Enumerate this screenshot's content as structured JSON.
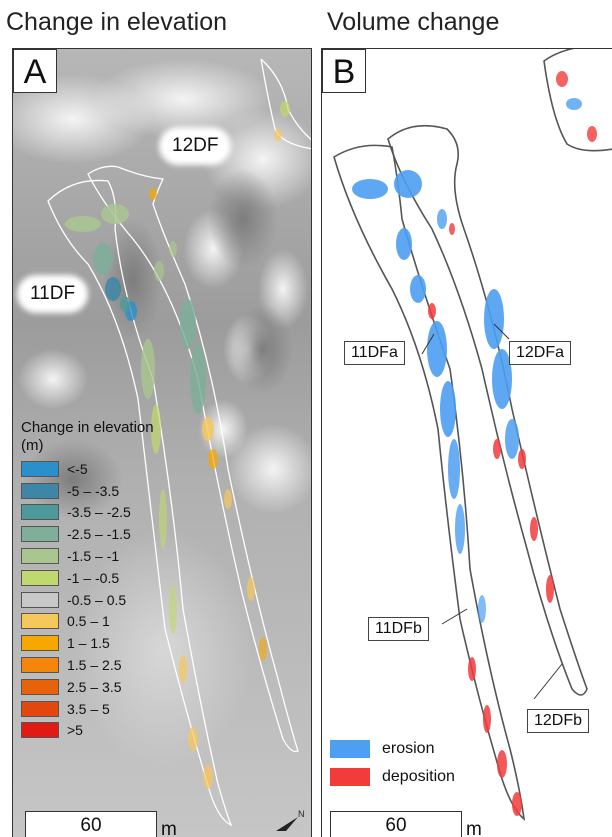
{
  "panel_titles": {
    "a": "Change in elevation",
    "b": "Volume change"
  },
  "panel_a": {
    "label": "A",
    "flow_labels": {
      "df12": "12DF",
      "df11": "11DF"
    },
    "legend_title": "Change in elevation (m)",
    "legend_items": [
      {
        "label": "<-5",
        "color": "#2b8fcb"
      },
      {
        "label": "-5 – -3.5",
        "color": "#3d86a6"
      },
      {
        "label": "-3.5 – -2.5",
        "color": "#4e9a9b"
      },
      {
        "label": "-2.5 – -1.5",
        "color": "#7fae9a"
      },
      {
        "label": "-1.5 – -1",
        "color": "#a9c690"
      },
      {
        "label": "-1 – -0.5",
        "color": "#c0d96e"
      },
      {
        "label": "-0.5 – 0.5",
        "color": "#c8c8c8"
      },
      {
        "label": "0.5 – 1",
        "color": "#f6c85a"
      },
      {
        "label": "1 – 1.5",
        "color": "#f6a800"
      },
      {
        "label": "1.5 – 2.5",
        "color": "#f4860c"
      },
      {
        "label": "2.5 – 3.5",
        "color": "#e8620c"
      },
      {
        "label": "3.5 – 5",
        "color": "#e2480e"
      },
      {
        "label": ">5",
        "color": "#e21a12"
      }
    ],
    "scale_value": "60",
    "scale_unit": "m",
    "north_label": "N"
  },
  "panel_b": {
    "label": "B",
    "flow_labels": {
      "df11a": "11DFa",
      "df12a": "12DFa",
      "df11b": "11DFb",
      "df12b": "12DFb"
    },
    "legend_items": [
      {
        "label": "erosion",
        "color": "#4d9ff2"
      },
      {
        "label": "deposition",
        "color": "#f23b3b"
      }
    ],
    "scale_value": "60",
    "scale_unit": "m"
  },
  "colors": {
    "erosion": "#4d9ff2",
    "deposition": "#f23b3b",
    "outline": "#555555"
  }
}
